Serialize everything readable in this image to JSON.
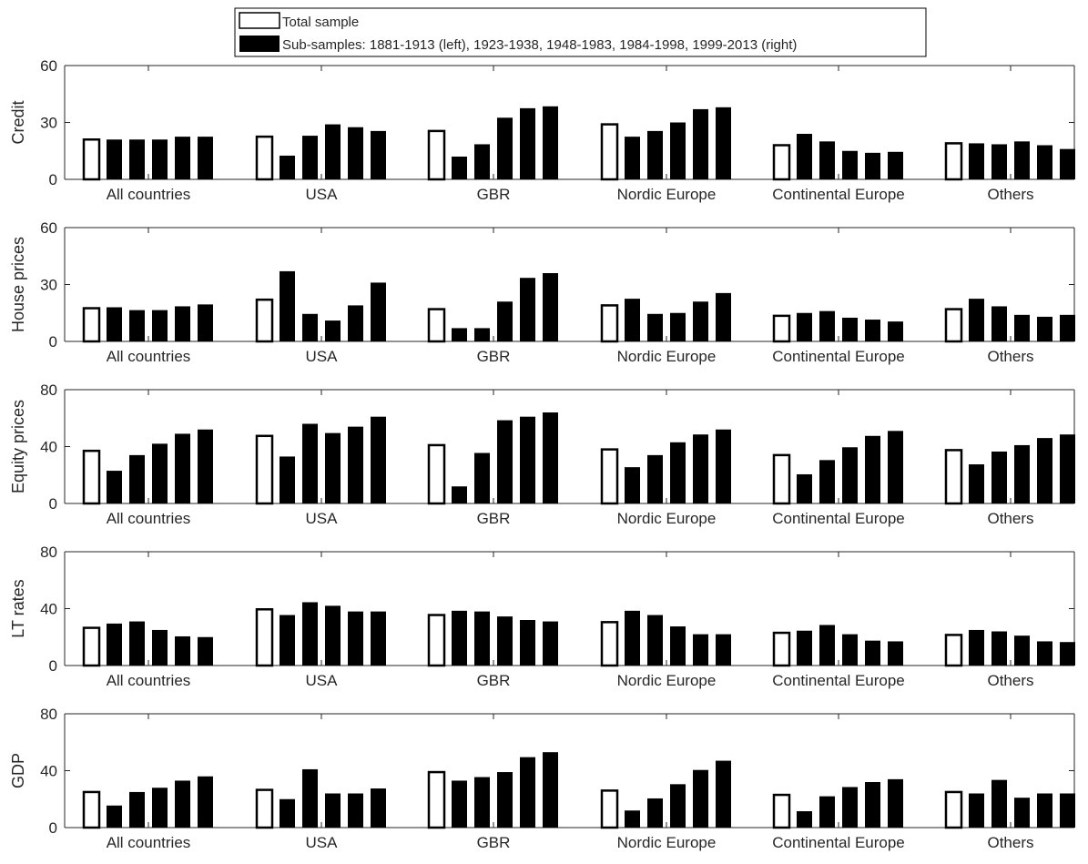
{
  "legend": [
    {
      "label": "Total sample",
      "fill": "#ffffff"
    },
    {
      "label": "Sub-samples: 1881-1913 (left), 1923-1938, 1948-1983, 1984-1998, 1999-2013 (right)",
      "fill": "#000000"
    }
  ],
  "colors": {
    "bar_fill": "#000000",
    "total_fill": "#ffffff",
    "axis": "#262626"
  },
  "chart_data": [
    {
      "type": "bar",
      "ylabel": "Credit",
      "ylim": [
        0,
        60
      ],
      "yticks": [
        0,
        30,
        60
      ],
      "categories": [
        "All countries",
        "USA",
        "GBR",
        "Nordic Europe",
        "Continental Europe",
        "Others"
      ],
      "series": [
        {
          "name": "Total sample",
          "values": [
            21,
            22.5,
            25.5,
            29,
            18,
            19
          ]
        },
        {
          "values": [
            21,
            12.5,
            12,
            22.5,
            24,
            19
          ]
        },
        {
          "values": [
            21,
            23,
            18.5,
            25.5,
            20,
            18.5
          ]
        },
        {
          "values": [
            21,
            29,
            32.5,
            30,
            15,
            20
          ]
        },
        {
          "values": [
            22.5,
            27.5,
            37.5,
            37,
            14,
            18
          ]
        },
        {
          "values": [
            22.5,
            25.5,
            38.5,
            38,
            14.5,
            16
          ]
        }
      ]
    },
    {
      "type": "bar",
      "ylabel": "House prices",
      "ylim": [
        0,
        60
      ],
      "yticks": [
        0,
        30,
        60
      ],
      "categories": [
        "All countries",
        "USA",
        "GBR",
        "Nordic Europe",
        "Continental Europe",
        "Others"
      ],
      "series": [
        {
          "name": "Total sample",
          "values": [
            17.5,
            22,
            17,
            19,
            13.5,
            17
          ]
        },
        {
          "values": [
            18,
            37,
            7,
            22.5,
            15,
            22.5
          ]
        },
        {
          "values": [
            16.5,
            14.5,
            7,
            14.5,
            16,
            18.5
          ]
        },
        {
          "values": [
            16.5,
            11,
            21,
            15,
            12.5,
            14
          ]
        },
        {
          "values": [
            18.5,
            19,
            33.5,
            21,
            11.5,
            13
          ]
        },
        {
          "values": [
            19.5,
            31,
            36,
            25.5,
            10.5,
            14
          ]
        }
      ]
    },
    {
      "type": "bar",
      "ylabel": "Equity prices",
      "ylim": [
        0,
        80
      ],
      "yticks": [
        0,
        40,
        80
      ],
      "categories": [
        "All countries",
        "USA",
        "GBR",
        "Nordic Europe",
        "Continental Europe",
        "Others"
      ],
      "series": [
        {
          "name": "Total sample",
          "values": [
            37,
            47.5,
            41,
            38,
            34,
            37.5
          ]
        },
        {
          "values": [
            23,
            33,
            12,
            25.5,
            20.5,
            27.5
          ]
        },
        {
          "values": [
            34,
            56,
            35.5,
            34,
            30.5,
            36.5
          ]
        },
        {
          "values": [
            42,
            49.5,
            58.5,
            43,
            39.5,
            41
          ]
        },
        {
          "values": [
            49,
            54,
            61,
            48.5,
            47.5,
            46
          ]
        },
        {
          "values": [
            52,
            61,
            64,
            52,
            51,
            48.5
          ]
        }
      ]
    },
    {
      "type": "bar",
      "ylabel": "LT rates",
      "ylim": [
        0,
        80
      ],
      "yticks": [
        0,
        40,
        80
      ],
      "categories": [
        "All countries",
        "USA",
        "GBR",
        "Nordic Europe",
        "Continental Europe",
        "Others"
      ],
      "series": [
        {
          "name": "Total sample",
          "values": [
            26.5,
            39.5,
            35.5,
            30.5,
            23,
            21.5
          ]
        },
        {
          "values": [
            29.5,
            35.5,
            38.5,
            38.5,
            24.5,
            25
          ]
        },
        {
          "values": [
            31,
            44.5,
            38,
            35.5,
            28.5,
            24
          ]
        },
        {
          "values": [
            25,
            42,
            34.5,
            27.5,
            22,
            21
          ]
        },
        {
          "values": [
            20.5,
            38,
            32,
            22,
            17.5,
            17
          ]
        },
        {
          "values": [
            20,
            38,
            31,
            22,
            17,
            16.5
          ]
        }
      ]
    },
    {
      "type": "bar",
      "ylabel": "GDP",
      "ylim": [
        0,
        80
      ],
      "yticks": [
        0,
        40,
        80
      ],
      "categories": [
        "All countries",
        "USA",
        "GBR",
        "Nordic Europe",
        "Continental Europe",
        "Others"
      ],
      "series": [
        {
          "name": "Total sample",
          "values": [
            25,
            26.5,
            39,
            26,
            23,
            25
          ]
        },
        {
          "values": [
            15.5,
            20,
            33,
            12,
            11.5,
            24
          ]
        },
        {
          "values": [
            25,
            41,
            35.5,
            20.5,
            22,
            33.5
          ]
        },
        {
          "values": [
            28,
            24,
            39,
            30.5,
            28.5,
            21
          ]
        },
        {
          "values": [
            33,
            24,
            49.5,
            40.5,
            32,
            24
          ]
        },
        {
          "values": [
            36,
            27.5,
            53,
            47,
            34,
            24
          ]
        }
      ]
    }
  ]
}
